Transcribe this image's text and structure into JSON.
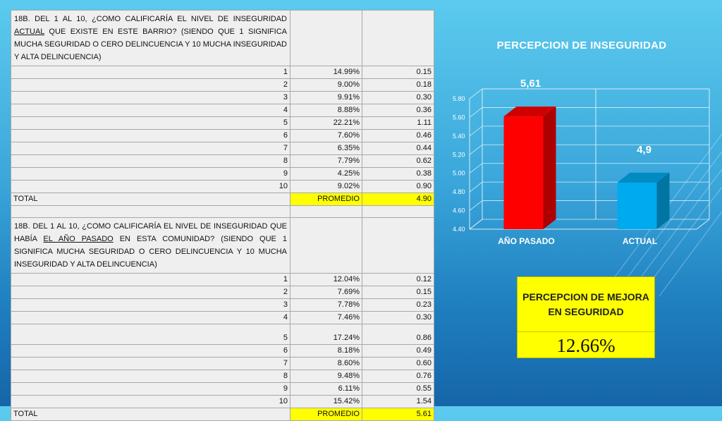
{
  "table1": {
    "question_pre": "18B. DEL 1 AL 10, ¿COMO CALIFICARÍA EL NIVEL DE INSEGURIDAD ",
    "question_emph": "ACTUAL",
    "question_post": " QUE EXISTE EN ESTE BARRIO? (SIENDO QUE 1 SIGNIFICA MUCHA SEGURIDAD O CERO DELINCUENCIA Y 10 MUCHA INSEGURIDAD Y ALTA DELINCUENCIA)",
    "rows": [
      {
        "score": "1",
        "pct": "14.99%",
        "weighted": "0.15"
      },
      {
        "score": "2",
        "pct": "9.00%",
        "weighted": "0.18"
      },
      {
        "score": "3",
        "pct": "9.91%",
        "weighted": "0.30"
      },
      {
        "score": "4",
        "pct": "8.88%",
        "weighted": "0.36"
      },
      {
        "score": "5",
        "pct": "22.21%",
        "weighted": "1.11"
      },
      {
        "score": "6",
        "pct": "7.60%",
        "weighted": "0.46"
      },
      {
        "score": "7",
        "pct": "6.35%",
        "weighted": "0.44"
      },
      {
        "score": "8",
        "pct": "7.79%",
        "weighted": "0.62"
      },
      {
        "score": "9",
        "pct": "4.25%",
        "weighted": "0.38"
      },
      {
        "score": "10",
        "pct": "9.02%",
        "weighted": "0.90"
      }
    ],
    "total_label": "TOTAL",
    "promedio_label": "PROMEDIO",
    "promedio_value": "4.90"
  },
  "table2": {
    "question_pre": "18B. DEL 1 AL 10, ¿COMO CALIFICARÍA EL NIVEL DE INSEGURIDAD QUE HABÍA ",
    "question_emph": "EL AÑO PASADO",
    "question_post": " EN ESTA COMUNIDAD? (SIENDO QUE 1 SIGNIFICA MUCHA SEGURIDAD O CERO DELINCUENCIA Y 10 MUCHA INSEGURIDAD Y ALTA DELINCUENCIA)",
    "rows": [
      {
        "score": "1",
        "pct": "12.04%",
        "weighted": "0.12"
      },
      {
        "score": "2",
        "pct": "7.69%",
        "weighted": "0.15"
      },
      {
        "score": "3",
        "pct": "7.78%",
        "weighted": "0.23"
      },
      {
        "score": "4",
        "pct": "7.46%",
        "weighted": "0.30"
      },
      {
        "score": "5",
        "pct": "17.24%",
        "weighted": "0.86"
      },
      {
        "score": "6",
        "pct": "8.18%",
        "weighted": "0.49"
      },
      {
        "score": "7",
        "pct": "8.60%",
        "weighted": "0.60"
      },
      {
        "score": "8",
        "pct": "9.48%",
        "weighted": "0.76"
      },
      {
        "score": "9",
        "pct": "6.11%",
        "weighted": "0.55"
      },
      {
        "score": "10",
        "pct": "15.42%",
        "weighted": "1.54"
      }
    ],
    "total_label": "TOTAL",
    "promedio_label": "PROMEDIO",
    "promedio_value": "5.61"
  },
  "chart_data": {
    "type": "bar",
    "title": "PERCEPCION DE INSEGURIDAD",
    "categories": [
      "AÑO PASADO",
      "ACTUAL"
    ],
    "values": [
      5.61,
      4.9
    ],
    "data_labels": [
      "5,61",
      "4,9"
    ],
    "ylim": [
      4.4,
      5.8
    ],
    "yticks": [
      "4.40",
      "4.60",
      "4.80",
      "5.00",
      "5.20",
      "5.40",
      "5.60",
      "5.80"
    ],
    "grid": true,
    "legend": "none",
    "colors": [
      "#ff0000",
      "#00aaee"
    ]
  },
  "mejora": {
    "label": "PERCEPCION DE MEJORA EN SEGURIDAD",
    "value": "12.66%"
  }
}
